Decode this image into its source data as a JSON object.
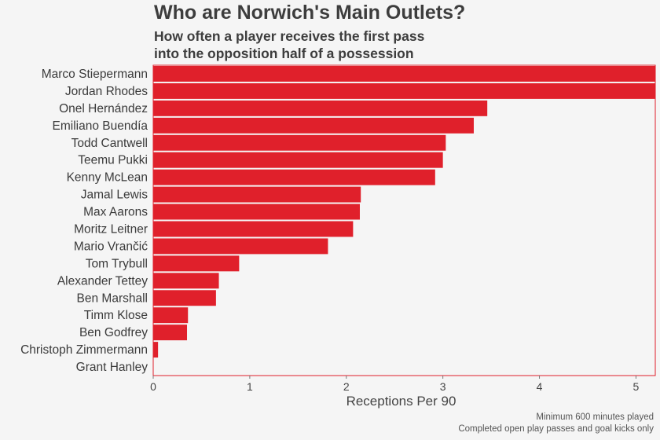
{
  "header": {
    "title": "Who are Norwich's Main Outlets?",
    "subtitle_line1": "How often a player receives the first pass",
    "subtitle_line2": "into the opposition half of a possession"
  },
  "footnote": {
    "line1": "Minimum 600 minutes played",
    "line2": "Completed open play passes and goal kicks only"
  },
  "colors": {
    "bar": "#e0202b",
    "frame": "#e0202b",
    "background": "#f5f5f5"
  },
  "chart_data": {
    "type": "bar",
    "orientation": "horizontal",
    "title": "Who are Norwich's Main Outlets?",
    "subtitle": "How often a player receives the first pass into the opposition half of a possession",
    "xlabel": "Receptions Per 90",
    "ylabel": "",
    "xlim": [
      0,
      5.2
    ],
    "xticks": [
      0,
      1,
      2,
      3,
      4,
      5
    ],
    "grid": false,
    "categories": [
      "Marco Stiepermann",
      "Jordan Rhodes",
      "Onel Hernández",
      "Emiliano Buendía",
      "Todd Cantwell",
      "Teemu Pukki",
      "Kenny McLean",
      "Jamal Lewis",
      "Max Aarons",
      "Moritz Leitner",
      "Mario Vrančić",
      "Tom Trybull",
      "Alexander Tettey",
      "Ben Marshall",
      "Timm Klose",
      "Ben Godfrey",
      "Christoph Zimmermann",
      "Grant Hanley"
    ],
    "values": [
      5.2,
      5.2,
      3.46,
      3.32,
      3.03,
      3.0,
      2.92,
      2.15,
      2.14,
      2.07,
      1.81,
      0.89,
      0.68,
      0.65,
      0.36,
      0.35,
      0.05,
      0.0
    ]
  }
}
